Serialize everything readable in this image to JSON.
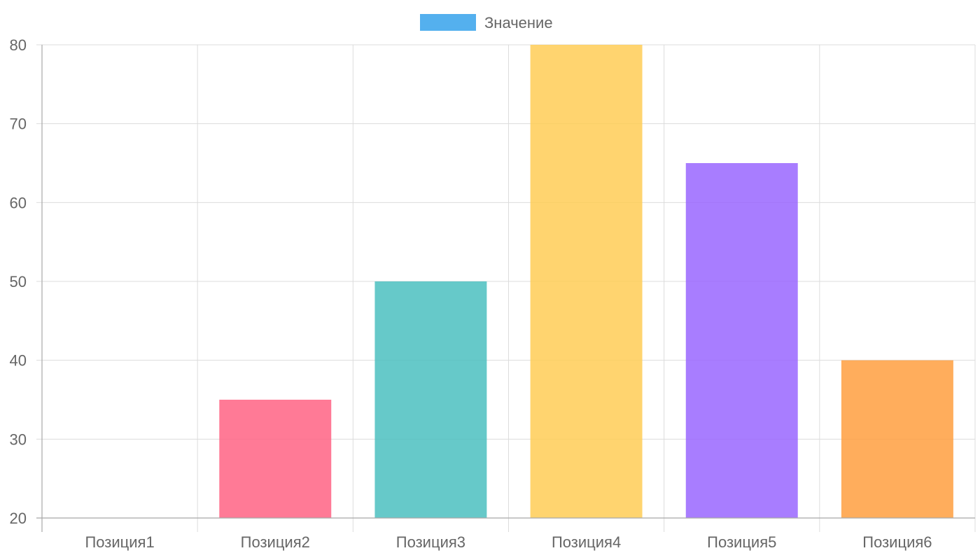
{
  "chart_data": {
    "type": "bar",
    "categories": [
      "Позиция1",
      "Позиция2",
      "Позиция3",
      "Позиция4",
      "Позиция5",
      "Позиция6"
    ],
    "series": [
      {
        "name": "Значение",
        "values": [
          20,
          35,
          50,
          80,
          65,
          40
        ],
        "bar_colors": [
          "#ff6384",
          "#ff6384",
          "#4bc0c0",
          "#ffcd56",
          "#9966ff",
          "#ff9f40"
        ]
      }
    ],
    "legend": {
      "position": "top",
      "color": "#36a2eb"
    },
    "ylim": [
      20,
      80
    ],
    "yticks": [
      20,
      30,
      40,
      50,
      60,
      70,
      80
    ],
    "grid": true,
    "title": "",
    "xlabel": "",
    "ylabel": ""
  }
}
